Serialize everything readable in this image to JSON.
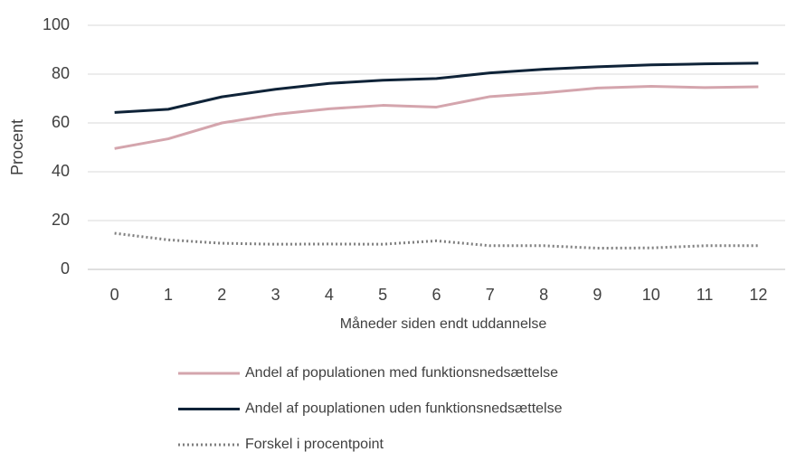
{
  "chart_data": {
    "type": "line",
    "x_label": "Måneder siden endt uddannelse",
    "y_label": "Procent",
    "categories": [
      "0",
      "1",
      "2",
      "3",
      "4",
      "5",
      "6",
      "7",
      "8",
      "9",
      "10",
      "11",
      "12"
    ],
    "series": [
      {
        "name": "Andel af populationen med funktionsnedsættelse",
        "color": "#d4a5ad",
        "line_style": "solid",
        "values": [
          49.5,
          53.5,
          60,
          63.5,
          65.8,
          67.2,
          66.5,
          70.8,
          72.3,
          74.3,
          75,
          74.5,
          74.8
        ]
      },
      {
        "name": "Andel af pouplationen uden funktionsnedsættelse",
        "color": "#0f2338",
        "line_style": "solid",
        "values": [
          64.3,
          65.6,
          70.7,
          73.8,
          76.2,
          77.5,
          78.2,
          80.5,
          82,
          83,
          83.8,
          84.2,
          84.5
        ]
      },
      {
        "name": "Forskel i procentpoint",
        "color": "#7f7f7f",
        "line_style": "dotted",
        "values": [
          14.8,
          12.1,
          10.7,
          10.3,
          10.4,
          10.3,
          11.7,
          9.7,
          9.7,
          8.7,
          8.8,
          9.7,
          9.7
        ]
      }
    ],
    "ylim": [
      0,
      100
    ],
    "yticks": [
      0,
      20,
      40,
      60,
      80,
      100
    ],
    "grid": true
  }
}
